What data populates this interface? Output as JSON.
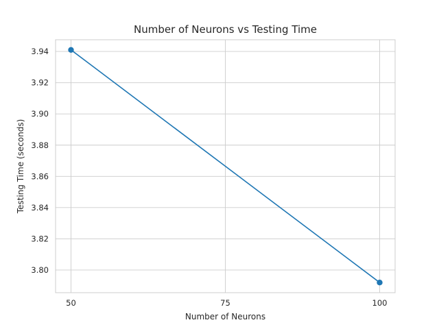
{
  "chart_data": {
    "type": "line",
    "title": "Number of Neurons vs Testing Time",
    "xlabel": "Number of Neurons",
    "ylabel": "Testing Time (seconds)",
    "x": [
      50,
      100
    ],
    "series": [
      {
        "values": [
          3.941,
          3.792
        ],
        "color": "#1f77b4",
        "marker": "circle"
      }
    ],
    "xlim": [
      47.5,
      102.5
    ],
    "ylim": [
      3.7855,
      3.9475
    ],
    "xticks": [
      50,
      75,
      100
    ],
    "yticks": [
      3.8,
      3.82,
      3.84,
      3.86,
      3.88,
      3.9,
      3.92,
      3.94
    ],
    "ytick_decimals": 2,
    "grid": true,
    "style": "whitegrid"
  }
}
